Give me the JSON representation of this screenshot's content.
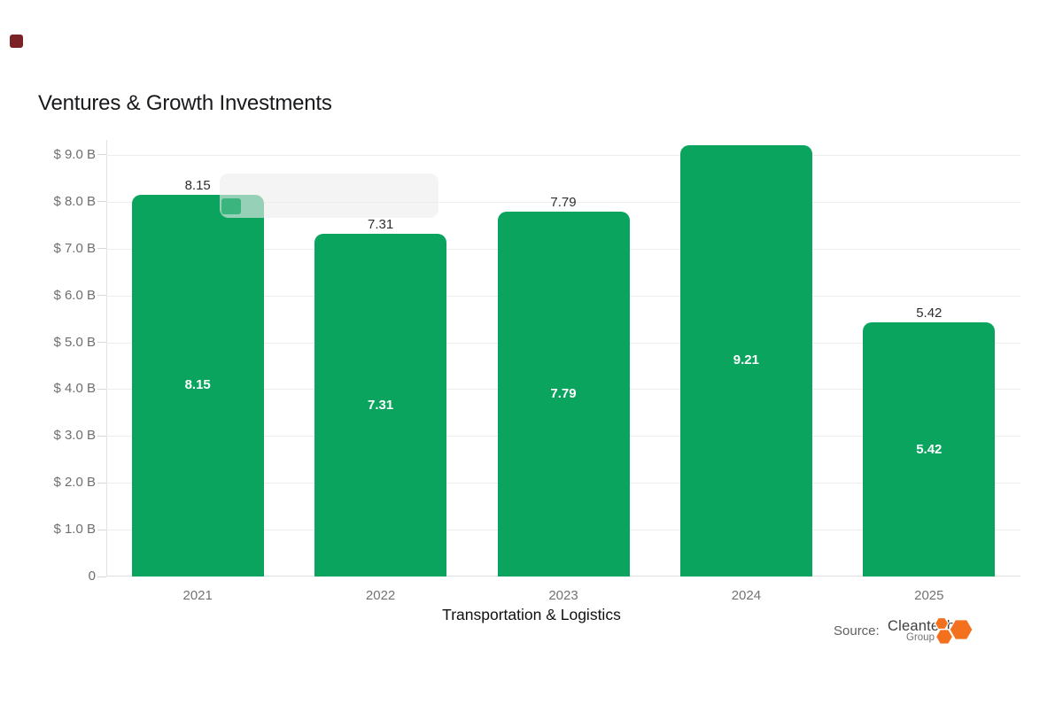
{
  "title": "Ventures & Growth Investments",
  "chart_data": {
    "type": "bar",
    "title": "Ventures & Growth Investments",
    "categories": [
      "2021",
      "2022",
      "2023",
      "2024",
      "2025"
    ],
    "values": [
      8.15,
      7.31,
      7.79,
      9.21,
      5.42
    ],
    "bar_labels": [
      "8.15",
      "7.31",
      "7.79",
      "9.21",
      "5.42"
    ],
    "xlabel": "Transportation & Logistics",
    "ylabel": "",
    "ylim": [
      0,
      9.32
    ],
    "axis_max": 9.32,
    "ytick_values": [
      0,
      1,
      2,
      3,
      4,
      5,
      6,
      7,
      8,
      9
    ],
    "ytick_labels": [
      "0",
      "$ 1.0 B",
      "$ 2.0 B",
      "$ 3.0 B",
      "$ 4.0 B",
      "$ 5.0 B",
      "$ 6.0 B",
      "$ 7.0 B",
      "$ 8.0 B",
      "$ 9.0 B"
    ],
    "grid": true,
    "legend_position": "none",
    "bar_color": "#0aa45f",
    "label_inside_color": "#ffffff",
    "label_outside_color": "#2e2e2e"
  },
  "tooltip_ghost": {
    "visible": true,
    "text": ""
  },
  "source": {
    "label": "Source:",
    "brand": "Cleantech",
    "brand_sub": "Group",
    "logo_color": "#f3701e"
  }
}
